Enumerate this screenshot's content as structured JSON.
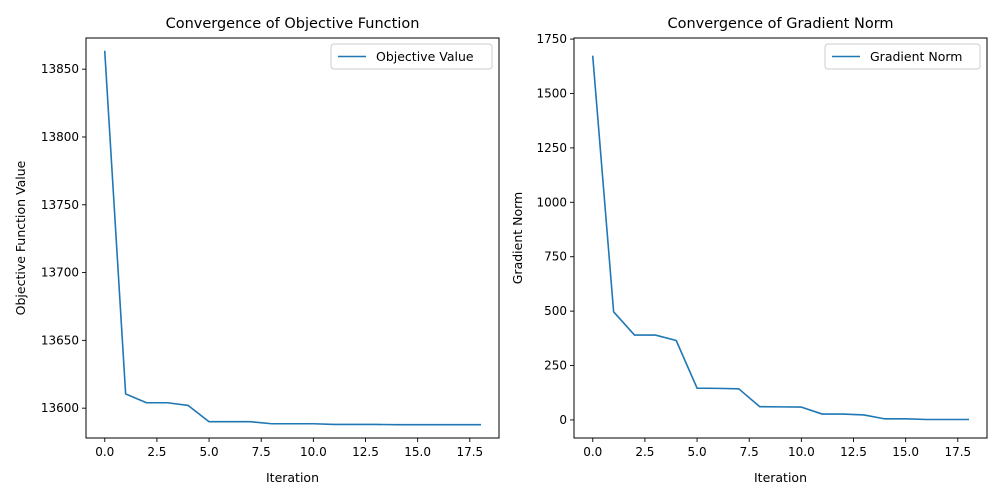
{
  "chart_data": [
    {
      "type": "line",
      "title": "Convergence of Objective Function",
      "xlabel": "Iteration",
      "ylabel": "Objective Function Value",
      "xlim": [
        -0.9,
        18.9
      ],
      "ylim": [
        13578,
        13873
      ],
      "xticks": [
        0.0,
        2.5,
        5.0,
        7.5,
        10.0,
        12.5,
        15.0,
        17.5
      ],
      "xtick_labels": [
        "0.0",
        "2.5",
        "5.0",
        "7.5",
        "10.0",
        "12.5",
        "15.0",
        "17.5"
      ],
      "yticks": [
        13600,
        13650,
        13700,
        13750,
        13800,
        13850
      ],
      "ytick_labels": [
        "13600",
        "13650",
        "13700",
        "13750",
        "13800",
        "13850"
      ],
      "grid": false,
      "legend_position": "top-right",
      "series": [
        {
          "name": "Objective Value",
          "color": "#1f77b4",
          "x": [
            0,
            1,
            2,
            3,
            4,
            5,
            6,
            7,
            8,
            9,
            10,
            11,
            12,
            13,
            14,
            15,
            16,
            17,
            18
          ],
          "y": [
            13863,
            13610.5,
            13604,
            13604,
            13602,
            13590,
            13590,
            13590,
            13588.5,
            13588.5,
            13588.5,
            13588,
            13588,
            13588,
            13587.8,
            13587.8,
            13587.8,
            13587.8,
            13587.8
          ]
        }
      ]
    },
    {
      "type": "line",
      "title": "Convergence of Gradient Norm",
      "xlabel": "Iteration",
      "ylabel": "Gradient Norm",
      "xlim": [
        -0.9,
        18.9
      ],
      "ylim": [
        -83,
        1755
      ],
      "xticks": [
        0.0,
        2.5,
        5.0,
        7.5,
        10.0,
        12.5,
        15.0,
        17.5
      ],
      "xtick_labels": [
        "0.0",
        "2.5",
        "5.0",
        "7.5",
        "10.0",
        "12.5",
        "15.0",
        "17.5"
      ],
      "yticks": [
        0,
        250,
        500,
        750,
        1000,
        1250,
        1500,
        1750
      ],
      "ytick_labels": [
        "0",
        "250",
        "500",
        "750",
        "1000",
        "1250",
        "1500",
        "1750"
      ],
      "grid": false,
      "legend_position": "top-right",
      "series": [
        {
          "name": "Gradient Norm",
          "color": "#1f77b4",
          "x": [
            0,
            1,
            2,
            3,
            4,
            5,
            6,
            7,
            8,
            9,
            10,
            11,
            12,
            13,
            14,
            15,
            16,
            17,
            18
          ],
          "y": [
            1670,
            497,
            390,
            390,
            365,
            146,
            145,
            143,
            61,
            60,
            59,
            27,
            27,
            23,
            5,
            5,
            2,
            2,
            2
          ]
        }
      ]
    }
  ]
}
